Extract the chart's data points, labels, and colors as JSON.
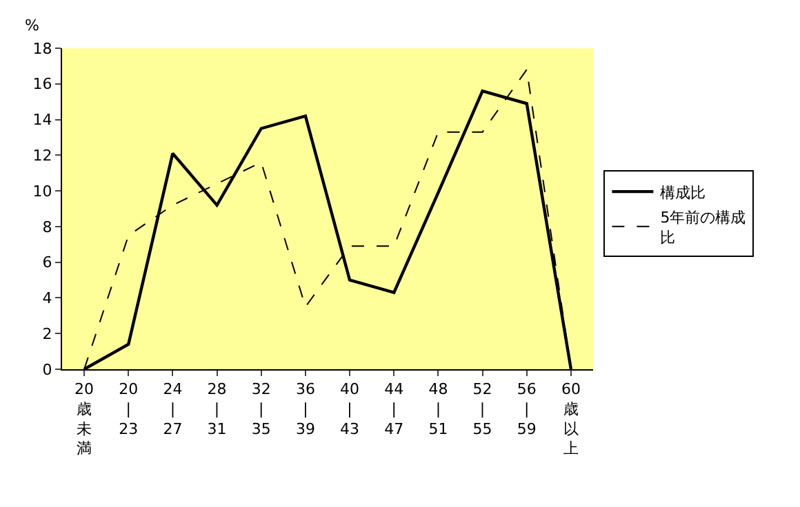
{
  "chart_data": {
    "type": "line",
    "ylabel": "%",
    "categories": [
      "20歳未満",
      "20\n|\n23",
      "24\n|\n27",
      "28\n|\n31",
      "32\n|\n35",
      "36\n|\n39",
      "40\n|\n43",
      "44\n|\n47",
      "48\n|\n51",
      "52\n|\n55",
      "56\n|\n59",
      "60歳以上"
    ],
    "series": [
      {
        "name": "構成比",
        "color": "#000000",
        "line_style": "solid",
        "values": [
          0,
          1.4,
          12.1,
          9.2,
          13.5,
          14.2,
          5.0,
          4.3,
          9.9,
          15.6,
          14.9,
          0
        ]
      },
      {
        "name": "5年前の構成比",
        "color": "#000000",
        "line_style": "dashed",
        "values": [
          0,
          7.5,
          9.2,
          10.4,
          11.6,
          3.5,
          6.9,
          6.9,
          13.3,
          13.3,
          16.8,
          0
        ]
      }
    ],
    "ylim": [
      0,
      18
    ],
    "yticks": [
      0,
      2,
      4,
      6,
      8,
      10,
      12,
      14,
      16,
      18
    ],
    "grid": false,
    "legend": "right",
    "marker": "none"
  }
}
